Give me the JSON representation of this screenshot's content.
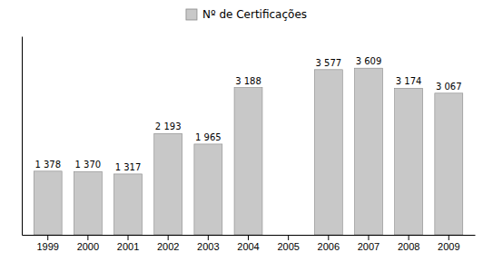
{
  "chart_data": {
    "type": "bar",
    "categories": [
      "1999",
      "2000",
      "2001",
      "2002",
      "2003",
      "2004",
      "2005",
      "2006",
      "2007",
      "2008",
      "2009"
    ],
    "series": [
      {
        "name": "Nº de Certificações",
        "color": "#C8C8C8",
        "values": [
          1378,
          1370,
          1317,
          2193,
          1965,
          3188,
          0,
          3577,
          3609,
          3174,
          3067
        ],
        "value_labels": [
          "1 378",
          "1 370",
          "1 317",
          "2 193",
          "1 965",
          "3 188",
          null,
          "3 577",
          "3 609",
          "3 174",
          "3 067"
        ]
      }
    ],
    "ylim": [
      0,
      4300
    ],
    "yticks": [],
    "tick_labels": "x",
    "data_labels": true,
    "legend": "top"
  }
}
